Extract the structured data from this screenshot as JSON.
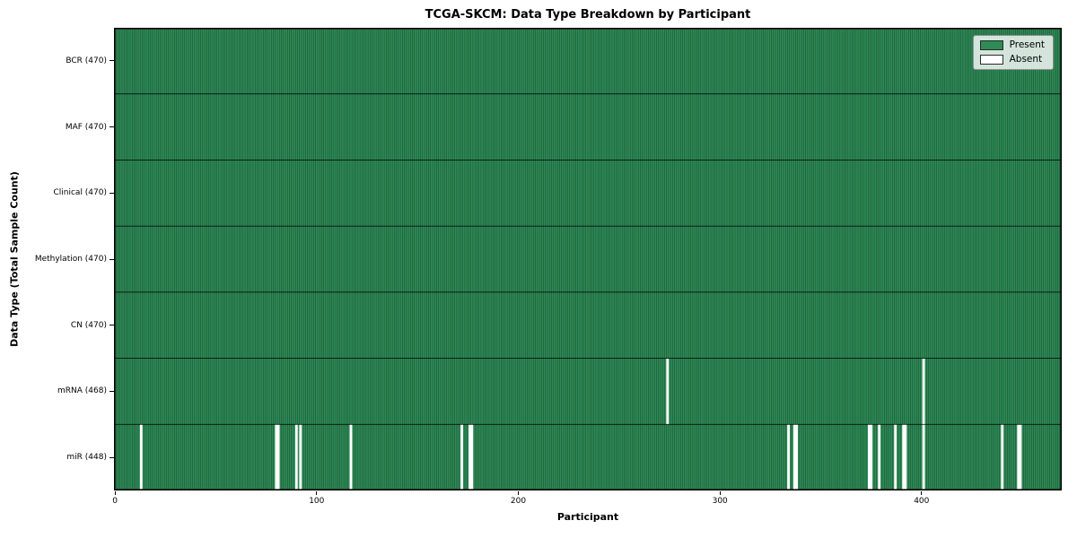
{
  "chart_data": {
    "type": "heatmap",
    "title": "TCGA-SKCM: Data Type Breakdown by Participant",
    "xlabel": "Participant",
    "ylabel": "Data Type (Total Sample Count)",
    "n_participants": 470,
    "x_ticks": [
      0,
      100,
      200,
      300,
      400
    ],
    "legend_position": "upper right",
    "grid": false,
    "rows": [
      {
        "label": "BCR (470)",
        "data_type": "BCR",
        "present_count": 470,
        "absent_participants": []
      },
      {
        "label": "MAF (470)",
        "data_type": "MAF",
        "present_count": 470,
        "absent_participants": []
      },
      {
        "label": "Clinical (470)",
        "data_type": "Clinical",
        "present_count": 470,
        "absent_participants": []
      },
      {
        "label": "Methylation (470)",
        "data_type": "Methylation",
        "present_count": 470,
        "absent_participants": []
      },
      {
        "label": "CN (470)",
        "data_type": "CN",
        "present_count": 470,
        "absent_participants": []
      },
      {
        "label": "mRNA (468)",
        "data_type": "mRNA",
        "present_count": 468,
        "absent_participants": [
          274,
          401
        ]
      },
      {
        "label": "miR (448)",
        "data_type": "miR",
        "present_count": 448,
        "absent_participants": [
          13,
          80,
          81,
          90,
          92,
          117,
          172,
          176,
          177,
          334,
          337,
          338,
          374,
          375,
          379,
          387,
          391,
          392,
          401,
          440,
          448,
          449
        ]
      }
    ],
    "legend": [
      {
        "label": "Present",
        "color": "#2e8b57"
      },
      {
        "label": "Absent",
        "color": "#ffffff"
      }
    ],
    "colors": {
      "present": "#2e8b57",
      "absent": "#ffffff",
      "bar_edge": "#000000",
      "axis": "#000000",
      "background": "#ffffff"
    }
  }
}
